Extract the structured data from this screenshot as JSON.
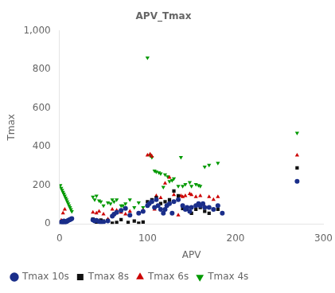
{
  "chart_data": {
    "type": "scatter",
    "title": "APV_Tmax",
    "xlabel": "APV",
    "ylabel": "Tmax",
    "xlim": [
      0,
      300
    ],
    "ylim": [
      0,
      1000
    ],
    "xticks": [
      0,
      100,
      200,
      300
    ],
    "yticks": [
      0,
      200,
      400,
      600,
      800,
      1000
    ],
    "grid": false,
    "legend": "bottom",
    "series": [
      {
        "name": "Tmax 10s",
        "color": "#1a2e8a",
        "marker": "circle",
        "x": [
          1,
          2,
          3,
          4,
          5,
          5,
          6,
          6,
          7,
          8,
          9,
          10,
          11,
          12,
          13,
          14,
          38,
          40,
          42,
          45,
          47,
          50,
          55,
          60,
          62,
          65,
          70,
          75,
          80,
          90,
          95,
          100,
          102,
          105,
          108,
          110,
          112,
          115,
          118,
          120,
          122,
          125,
          128,
          130,
          135,
          140,
          143,
          145,
          148,
          150,
          155,
          158,
          160,
          163,
          165,
          170,
          175,
          180,
          185,
          270
        ],
        "y": [
          5,
          10,
          8,
          12,
          6,
          15,
          8,
          4,
          10,
          12,
          15,
          18,
          20,
          22,
          25,
          28,
          20,
          15,
          18,
          12,
          8,
          10,
          15,
          40,
          50,
          60,
          70,
          80,
          45,
          55,
          65,
          95,
          105,
          115,
          85,
          125,
          95,
          75,
          55,
          75,
          95,
          105,
          55,
          115,
          125,
          95,
          75,
          85,
          65,
          85,
          95,
          105,
          95,
          105,
          85,
          85,
          75,
          95,
          55,
          220
        ]
      },
      {
        "name": "Tmax 8s",
        "color": "#111111",
        "marker": "square",
        "x": [
          3,
          5,
          38,
          42,
          47,
          50,
          55,
          60,
          65,
          70,
          78,
          85,
          90,
          95,
          100,
          105,
          110,
          115,
          120,
          125,
          130,
          135,
          140,
          145,
          150,
          155,
          160,
          165,
          170,
          180,
          270
        ],
        "y": [
          8,
          12,
          25,
          10,
          20,
          15,
          18,
          3,
          8,
          22,
          8,
          15,
          3,
          10,
          115,
          125,
          135,
          105,
          115,
          125,
          170,
          145,
          80,
          75,
          55,
          75,
          85,
          65,
          55,
          75,
          290
        ]
      },
      {
        "name": "Tmax 6s",
        "color": "#cc0000",
        "marker": "triangle_up",
        "x": [
          2,
          4,
          6,
          38,
          42,
          45,
          50,
          55,
          60,
          65,
          70,
          75,
          80,
          90,
          95,
          100,
          103,
          105,
          108,
          110,
          115,
          120,
          125,
          130,
          135,
          138,
          140,
          143,
          148,
          150,
          155,
          160,
          165,
          170,
          175,
          180,
          270
        ],
        "y": [
          18,
          55,
          75,
          60,
          55,
          65,
          50,
          25,
          75,
          70,
          60,
          50,
          65,
          55,
          70,
          355,
          360,
          350,
          75,
          145,
          135,
          210,
          240,
          150,
          45,
          145,
          140,
          145,
          155,
          150,
          140,
          145,
          90,
          140,
          125,
          140,
          355
        ]
      },
      {
        "name": "Tmax 4s",
        "color": "#009900",
        "marker": "triangle_down",
        "x": [
          1,
          2,
          3,
          4,
          5,
          6,
          7,
          8,
          9,
          10,
          11,
          12,
          13,
          14,
          38,
          40,
          42,
          45,
          47,
          50,
          55,
          58,
          60,
          62,
          65,
          70,
          72,
          75,
          80,
          85,
          90,
          95,
          100,
          103,
          105,
          108,
          110,
          113,
          115,
          118,
          120,
          123,
          125,
          128,
          130,
          135,
          138,
          140,
          143,
          148,
          150,
          155,
          158,
          160,
          165,
          170,
          180,
          270
        ],
        "y": [
          200,
          185,
          175,
          165,
          155,
          145,
          135,
          125,
          115,
          105,
          95,
          85,
          75,
          65,
          140,
          125,
          145,
          120,
          115,
          95,
          110,
          105,
          125,
          115,
          125,
          95,
          95,
          105,
          125,
          85,
          110,
          85,
          860,
          355,
          345,
          275,
          270,
          265,
          260,
          190,
          255,
          245,
          220,
          225,
          235,
          195,
          345,
          195,
          205,
          215,
          195,
          205,
          200,
          195,
          295,
          305,
          315,
          470
        ]
      }
    ]
  }
}
